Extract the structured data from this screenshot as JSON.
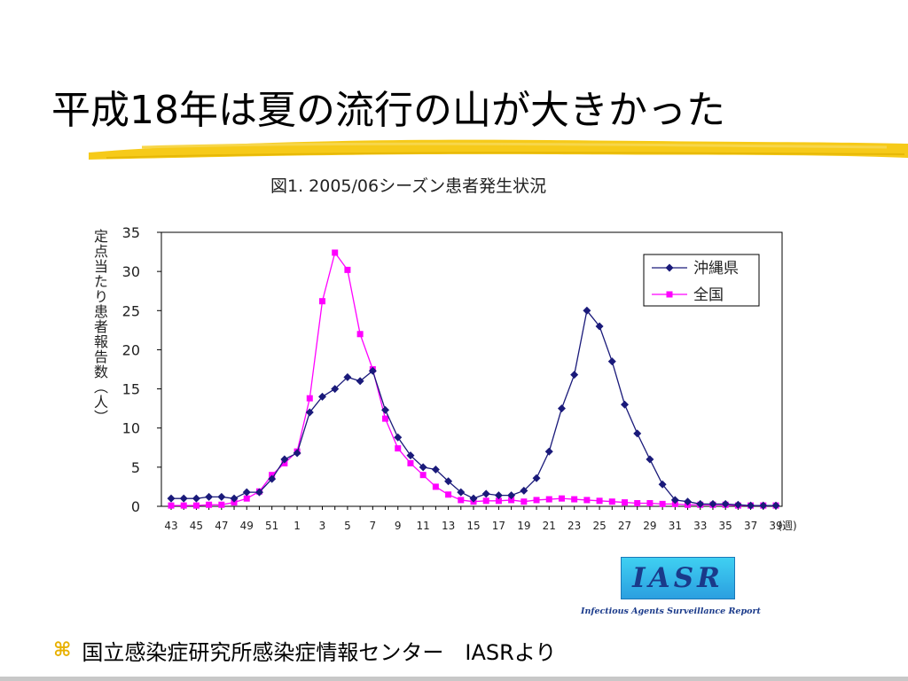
{
  "slide": {
    "title": "平成18年は夏の流行の山が大きかった",
    "bullet_icon": "command-icon",
    "bullet_text": "国立感染症研究所感染症情報センター　IASRより"
  },
  "logo": {
    "text": "IASR",
    "subtitle": "Infectious Agents Surveillance Report"
  },
  "colors": {
    "accent_brush": "#f5c400",
    "okinawa": "#1a1a7a",
    "national": "#ff00ff",
    "bullet": "#e8b000"
  },
  "chart_data": {
    "type": "line",
    "title": "図1. 2005/06シーズン患者発生状況",
    "ylabel": "定点当たり患者報告数（人）",
    "xlabel_unit": "(週)",
    "ylim": [
      0,
      35
    ],
    "yticks": [
      0,
      5,
      10,
      15,
      20,
      25,
      30,
      35
    ],
    "xtick_labels": [
      "43",
      "45",
      "47",
      "49",
      "51",
      "1",
      "3",
      "5",
      "7",
      "9",
      "11",
      "13",
      "15",
      "17",
      "19",
      "21",
      "23",
      "25",
      "27",
      "29",
      "31",
      "33",
      "35",
      "37",
      "39"
    ],
    "x": [
      "43",
      "44",
      "45",
      "46",
      "47",
      "48",
      "49",
      "50",
      "51",
      "52",
      "1",
      "2",
      "3",
      "4",
      "5",
      "6",
      "7",
      "8",
      "9",
      "10",
      "11",
      "12",
      "13",
      "14",
      "15",
      "16",
      "17",
      "18",
      "19",
      "20",
      "21",
      "22",
      "23",
      "24",
      "25",
      "26",
      "27",
      "28",
      "29",
      "30",
      "31",
      "32",
      "33",
      "34",
      "35",
      "36",
      "37",
      "38",
      "39"
    ],
    "legend_position": "top-right",
    "grid": false,
    "series": [
      {
        "name": "沖縄県",
        "marker": "diamond",
        "values": [
          1.0,
          1.0,
          1.0,
          1.2,
          1.2,
          1.0,
          1.8,
          1.8,
          3.5,
          6.0,
          6.8,
          12.0,
          14.0,
          15.0,
          16.5,
          16.0,
          17.3,
          12.3,
          8.8,
          6.5,
          5.0,
          4.7,
          3.2,
          1.8,
          1.0,
          1.6,
          1.4,
          1.4,
          2.0,
          3.6,
          7.0,
          12.5,
          16.8,
          25.0,
          23.0,
          18.5,
          13.0,
          9.3,
          6.0,
          2.8,
          0.8,
          0.6,
          0.3,
          0.3,
          0.3,
          0.2,
          0.1,
          0.1,
          0.1
        ]
      },
      {
        "name": "全国",
        "marker": "square",
        "values": [
          0.1,
          0.1,
          0.1,
          0.2,
          0.2,
          0.5,
          1.0,
          1.9,
          4.0,
          5.5,
          7.0,
          13.8,
          26.2,
          32.4,
          30.2,
          22.0,
          17.5,
          11.2,
          7.4,
          5.5,
          4.0,
          2.5,
          1.5,
          0.8,
          0.6,
          0.7,
          0.7,
          0.8,
          0.6,
          0.8,
          0.9,
          1.0,
          0.9,
          0.8,
          0.7,
          0.6,
          0.5,
          0.4,
          0.4,
          0.3,
          0.3,
          0.2,
          0.2,
          0.2,
          0.2,
          0.1,
          0.1,
          0.1,
          0.1
        ]
      }
    ]
  }
}
